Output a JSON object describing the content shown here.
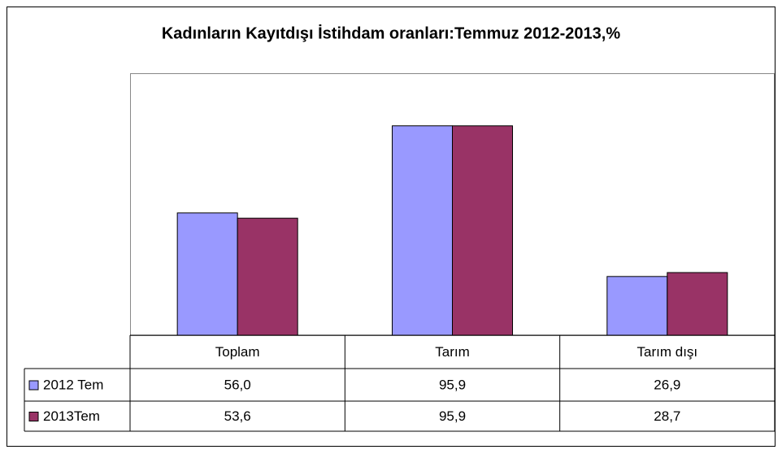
{
  "chart_data": {
    "type": "bar",
    "title": "Kadınların Kayıtdışı İstihdam oranları:Temmuz 2012-2013,%",
    "categories": [
      "Toplam",
      "Tarım",
      "Tarım dışı"
    ],
    "series": [
      {
        "name": "2012 Tem",
        "color": "#9999ff",
        "values": [
          56.0,
          95.9,
          26.9
        ],
        "value_labels": [
          "56,0",
          "95,9",
          "26,9"
        ]
      },
      {
        "name": "2013Tem",
        "color": "#993366",
        "values": [
          53.6,
          95.9,
          28.7
        ],
        "value_labels": [
          "53,6",
          "95,9",
          "28,7"
        ]
      }
    ],
    "ylim": [
      0,
      120
    ]
  }
}
